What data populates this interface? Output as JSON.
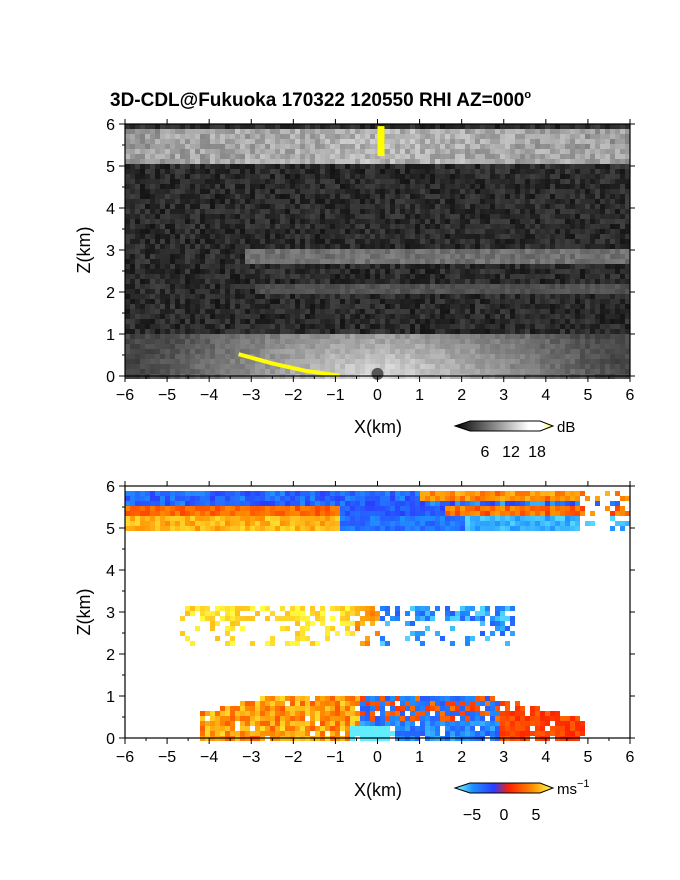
{
  "figure": {
    "title": "3D-CDL@Fukuoka 170322 120550 RHI AZ=000",
    "title_suffix": "o"
  },
  "chart_data": [
    {
      "type": "heatmap",
      "name": "intensity",
      "xlabel": "X(km)",
      "ylabel": "Z(km)",
      "xlim": [
        -6,
        6
      ],
      "ylim": [
        0,
        6
      ],
      "xticks": [
        "−6",
        "−5",
        "−4",
        "−3",
        "−2",
        "−1",
        "0",
        "1",
        "2",
        "3",
        "4",
        "5",
        "6"
      ],
      "yticks": [
        "0",
        "1",
        "2",
        "3",
        "4",
        "5",
        "6"
      ],
      "colorbar": {
        "unit": "dB",
        "ticks": [
          "6",
          "12",
          "18"
        ],
        "range": [
          0,
          21
        ],
        "colors": [
          "#000000",
          "#ffffff",
          "#ffff00"
        ]
      },
      "layers": [
        {
          "x": [
            -6,
            6
          ],
          "z": [
            5.1,
            5.9
          ],
          "level": 11
        },
        {
          "x": [
            -3.2,
            6
          ],
          "z": [
            2.75,
            3.1
          ],
          "level": 8
        },
        {
          "x": [
            -6,
            6
          ],
          "z": [
            0,
            1.1
          ],
          "level": 12
        }
      ]
    },
    {
      "type": "heatmap",
      "name": "velocity",
      "xlabel": "X(km)",
      "ylabel": "Z(km)",
      "xlim": [
        -6,
        6
      ],
      "ylim": [
        0,
        6
      ],
      "xticks": [
        "−6",
        "−5",
        "−4",
        "−3",
        "−2",
        "−1",
        "0",
        "1",
        "2",
        "3",
        "4",
        "5",
        "6"
      ],
      "yticks": [
        "0",
        "1",
        "2",
        "3",
        "4",
        "5",
        "6"
      ],
      "colorbar": {
        "unit": "ms",
        "unit_exp": "−1",
        "ticks": [
          "−5",
          "0",
          "5"
        ],
        "range": [
          -7,
          7
        ],
        "colors": [
          "#6fffff",
          "#2a4cff",
          "#ff2a00",
          "#ffff00"
        ]
      },
      "layers": [
        {
          "x": [
            -6,
            6
          ],
          "z": [
            5.0,
            5.95
          ],
          "velocity": "mixed"
        },
        {
          "x": [
            -5,
            3
          ],
          "z": [
            2.2,
            3.2
          ],
          "velocity": "mixed"
        },
        {
          "x": [
            -4.3,
            4.8
          ],
          "z": [
            0,
            1.15
          ],
          "velocity": "mixed"
        }
      ]
    }
  ]
}
